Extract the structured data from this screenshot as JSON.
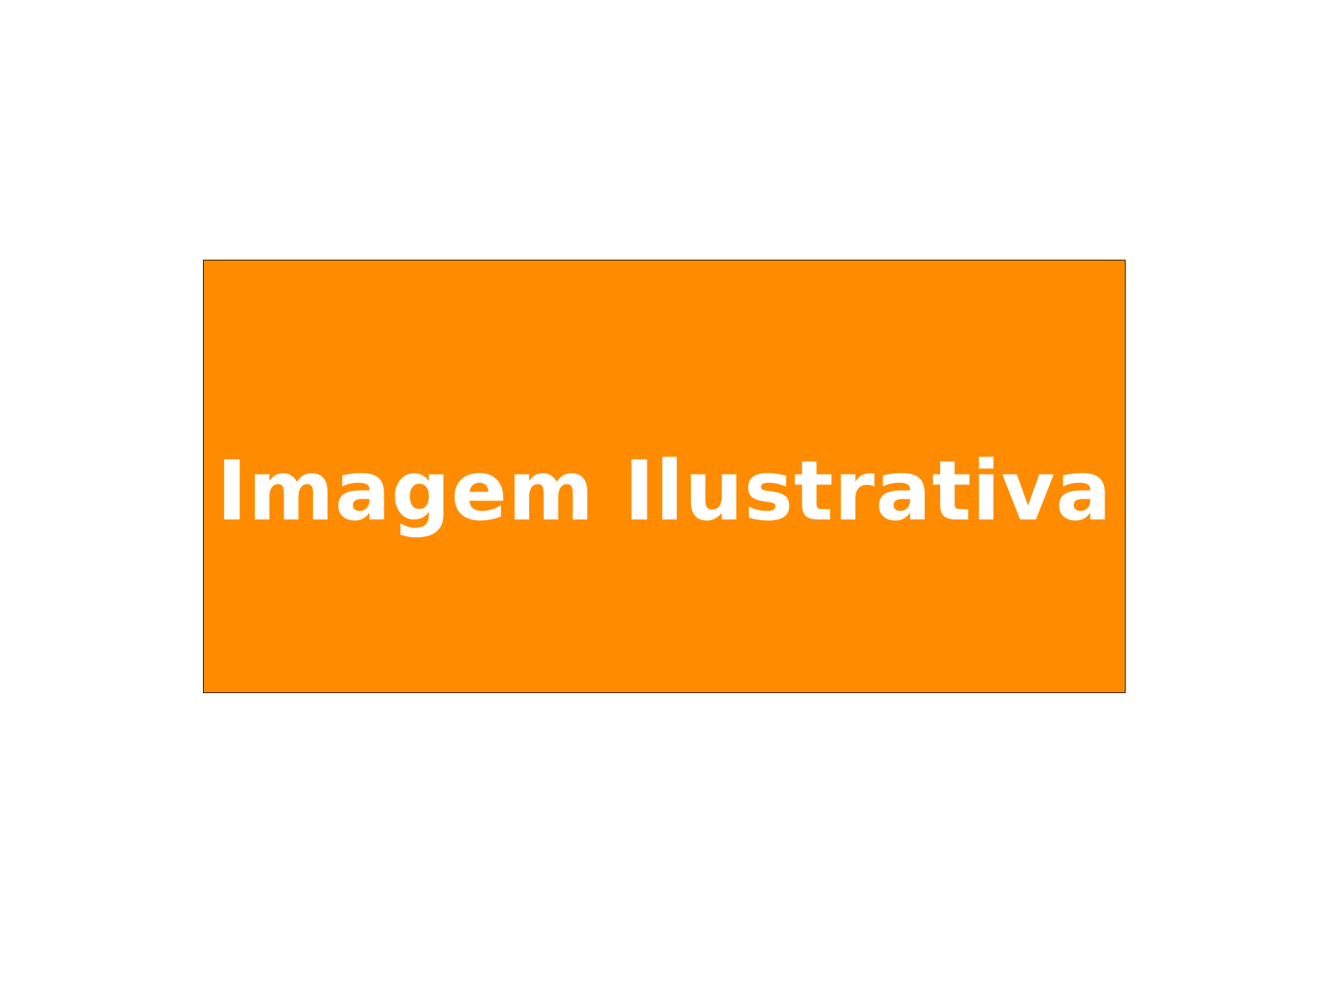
{
  "placeholder": {
    "label": "Imagem Ilustrativa",
    "background_color": "#FF8C00",
    "text_color": "#FFFFFF"
  }
}
